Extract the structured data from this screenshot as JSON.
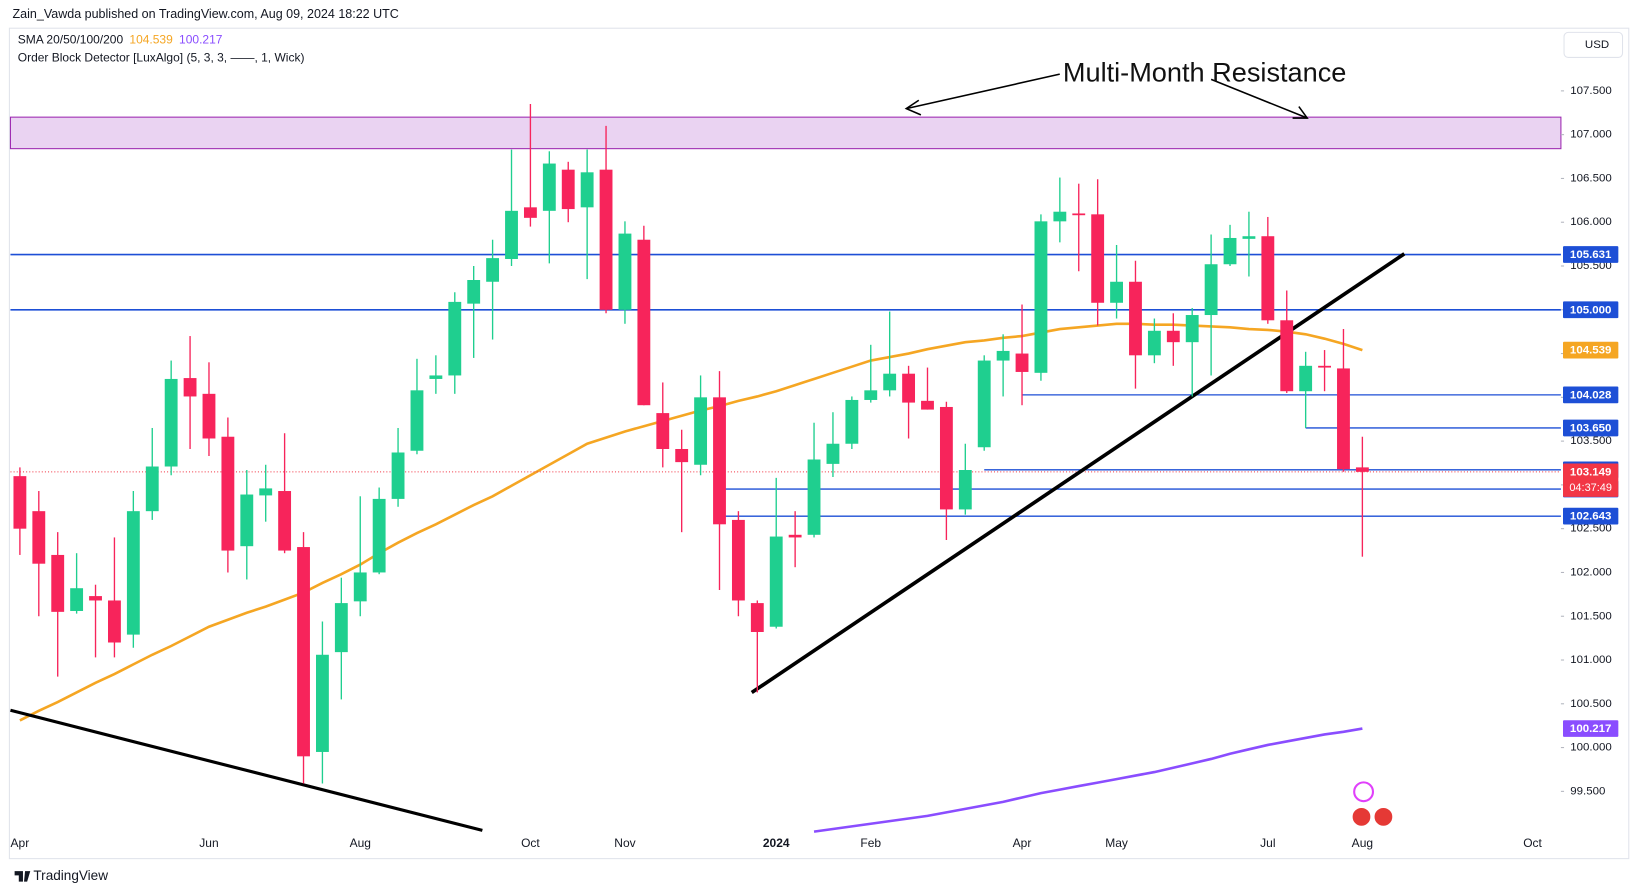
{
  "chart_data": {
    "type": "candlestick",
    "attribution": "Zain_Vawda published on TradingView.com, Aug 09, 2024 18:22 UTC",
    "indicator_sma": "SMA 20/50/100/200",
    "indicator_ob": "Order Block Detector [LuxAlgo] (5, 3, 3, ——, 1, Wick)",
    "currency": "USD",
    "annotation": "Multi-Month Resistance",
    "brand": "TradingView",
    "countdown": "04:37:49",
    "up_color": "#1fcf8f",
    "down_color": "#f7245b",
    "categories": [
      "Apr",
      null,
      null,
      null,
      null,
      null,
      null,
      null,
      null,
      null,
      "Jun",
      null,
      null,
      null,
      null,
      null,
      null,
      null,
      "Aug",
      null,
      null,
      null,
      null,
      null,
      null,
      null,
      null,
      "Oct",
      null,
      null,
      null,
      null,
      "Nov",
      null,
      null,
      null,
      null,
      null,
      null,
      null,
      "2024",
      null,
      null,
      null,
      null,
      "Feb",
      null,
      null,
      null,
      null,
      null,
      null,
      null,
      "Apr",
      null,
      null,
      null,
      null,
      "May",
      null,
      null,
      null,
      null,
      null,
      null,
      null,
      "Jul",
      null,
      null,
      null,
      null,
      "Aug",
      null,
      null,
      null,
      null,
      null,
      null,
      null,
      null,
      "Oct",
      null
    ],
    "open": [
      103.1,
      102.7,
      102.2,
      101.56,
      101.73,
      101.68,
      101.29,
      102.7,
      103.21,
      104.22,
      104.04,
      103.55,
      102.3,
      102.88,
      102.93,
      102.29,
      99.95,
      101.09,
      101.67,
      102.0,
      102.84,
      103.39,
      104.21,
      104.25,
      105.07,
      105.32,
      105.58,
      106.17,
      106.13,
      106.6,
      106.17,
      106.6,
      105.0,
      105.8,
      103.82,
      103.41,
      103.23,
      104.0,
      102.6,
      101.65,
      101.38,
      102.43,
      102.43,
      103.24,
      103.47,
      103.97,
      104.08,
      104.27,
      103.96,
      103.89,
      102.72,
      103.43,
      104.42,
      104.5,
      104.28,
      106.01,
      106.1,
      106.09,
      105.08,
      105.32,
      104.48,
      104.76,
      104.63,
      104.94,
      105.52,
      105.81,
      105.84,
      104.88,
      104.07,
      104.36,
      104.33,
      103.2,
      null,
      null,
      null,
      null,
      null,
      null,
      null,
      null,
      null,
      null
    ],
    "high": [
      103.2,
      102.93,
      102.46,
      102.22,
      101.86,
      102.4,
      102.93,
      103.65,
      104.42,
      104.7,
      104.4,
      103.77,
      103.17,
      103.23,
      103.59,
      102.46,
      101.44,
      101.94,
      102.87,
      102.97,
      103.65,
      104.44,
      104.48,
      105.2,
      105.5,
      105.8,
      106.83,
      107.35,
      106.81,
      106.69,
      106.83,
      107.1,
      106.01,
      105.96,
      104.17,
      103.63,
      104.25,
      104.3,
      102.7,
      101.68,
      103.08,
      102.7,
      103.71,
      103.83,
      104.01,
      104.6,
      104.98,
      104.36,
      104.34,
      103.95,
      103.47,
      104.48,
      104.72,
      105.06,
      106.09,
      106.51,
      106.44,
      106.49,
      105.74,
      105.56,
      104.9,
      104.96,
      105.02,
      105.86,
      105.97,
      106.12,
      106.06,
      105.22,
      104.52,
      104.54,
      104.78,
      103.55,
      null,
      null,
      null,
      null,
      null,
      null,
      null,
      null,
      null,
      null
    ],
    "low": [
      102.2,
      101.5,
      100.81,
      101.53,
      101.03,
      101.03,
      101.14,
      102.6,
      103.11,
      103.41,
      103.33,
      102.0,
      101.92,
      102.58,
      102.22,
      99.59,
      99.59,
      100.55,
      101.5,
      101.98,
      102.75,
      103.35,
      104.04,
      104.04,
      104.45,
      104.66,
      105.5,
      105.95,
      105.53,
      106.0,
      105.35,
      104.96,
      104.84,
      103.91,
      103.2,
      102.46,
      103.11,
      101.8,
      101.5,
      100.63,
      101.36,
      102.06,
      102.4,
      103.09,
      103.41,
      103.94,
      104.01,
      103.53,
      103.86,
      102.37,
      102.66,
      103.39,
      104.01,
      103.91,
      104.19,
      105.77,
      105.44,
      104.82,
      104.9,
      104.1,
      104.39,
      104.36,
      104.01,
      104.25,
      105.5,
      105.38,
      104.84,
      104.05,
      103.65,
      104.07,
      103.15,
      102.18,
      null,
      null,
      null,
      null,
      null,
      null,
      null,
      null,
      null,
      null
    ],
    "close": [
      102.5,
      102.1,
      101.55,
      101.82,
      101.68,
      101.2,
      102.7,
      103.21,
      104.21,
      104.01,
      103.53,
      102.25,
      102.89,
      102.96,
      102.25,
      99.9,
      101.06,
      101.65,
      102.0,
      102.84,
      103.37,
      104.08,
      104.25,
      105.09,
      105.34,
      105.59,
      106.13,
      106.05,
      106.67,
      106.15,
      106.57,
      105.0,
      105.87,
      103.91,
      103.41,
      103.26,
      104.0,
      102.55,
      101.68,
      101.32,
      102.41,
      102.4,
      103.29,
      103.47,
      103.97,
      104.08,
      104.27,
      103.94,
      103.86,
      102.72,
      103.17,
      104.42,
      104.53,
      104.29,
      106.01,
      106.12,
      106.08,
      105.08,
      105.32,
      104.48,
      104.76,
      104.63,
      104.94,
      105.52,
      105.82,
      105.84,
      104.88,
      104.07,
      104.36,
      104.34,
      103.18,
      103.149,
      null,
      null,
      null,
      null,
      null,
      null,
      null,
      null,
      null,
      null
    ],
    "series": [
      {
        "color": "#f5a623",
        "values": [
          100.31,
          100.42,
          100.52,
          100.63,
          100.74,
          100.84,
          100.95,
          101.06,
          101.16,
          101.27,
          101.38,
          101.46,
          101.54,
          101.61,
          101.69,
          101.77,
          101.88,
          101.98,
          102.09,
          102.22,
          102.34,
          102.45,
          102.55,
          102.66,
          102.77,
          102.87,
          102.99,
          103.11,
          103.23,
          103.35,
          103.47,
          103.54,
          103.61,
          103.67,
          103.73,
          103.79,
          103.85,
          103.9,
          103.96,
          104.01,
          104.07,
          104.14,
          104.21,
          104.28,
          104.35,
          104.42,
          104.46,
          104.5,
          104.55,
          104.59,
          104.63,
          104.65,
          104.68,
          104.7,
          104.74,
          104.78,
          104.8,
          104.82,
          104.84,
          104.84,
          104.83,
          104.83,
          104.82,
          104.81,
          104.8,
          104.78,
          104.77,
          104.75,
          104.72,
          104.67,
          104.61,
          104.539,
          null,
          null,
          null,
          null,
          null,
          null,
          null,
          null,
          null,
          null
        ]
      },
      {
        "color": "#8a4dff",
        "values": [
          null,
          null,
          null,
          null,
          null,
          null,
          null,
          null,
          null,
          null,
          null,
          null,
          null,
          null,
          null,
          null,
          null,
          null,
          null,
          null,
          null,
          null,
          null,
          null,
          null,
          null,
          null,
          null,
          null,
          null,
          null,
          null,
          null,
          null,
          null,
          null,
          null,
          null,
          null,
          null,
          null,
          null,
          99.04,
          99.07,
          99.1,
          99.13,
          99.16,
          99.19,
          99.22,
          99.26,
          99.3,
          99.34,
          99.38,
          99.43,
          99.48,
          99.52,
          99.56,
          99.6,
          99.64,
          99.68,
          99.72,
          99.77,
          99.82,
          99.87,
          99.93,
          99.98,
          100.03,
          100.07,
          100.11,
          100.15,
          100.18,
          100.217,
          null,
          null,
          null,
          null,
          null,
          null,
          null,
          null,
          null,
          null
        ]
      }
    ],
    "levels": [
      105.631,
      {
        "value": 105,
        "label": "105.000"
      },
      104.028,
      {
        "value": 103.65,
        "label": "103.650"
      },
      103.172,
      102.953,
      102.643
    ],
    "level_color": "#1d4fd6",
    "last_price_color": "#f23645",
    "resistance_zone": {
      "low": 106.84,
      "high": 107.2,
      "color": "#ead3f2"
    },
    "ylim": [
      99.03,
      108.18
    ],
    "yticks": [
      {
        "value": 99.5,
        "label": "99.500"
      },
      {
        "value": 100,
        "label": "100.000"
      },
      {
        "value": 100.5,
        "label": "100.500"
      },
      {
        "value": 101,
        "label": "101.000"
      },
      {
        "value": 101.5,
        "label": "101.500"
      },
      {
        "value": 102,
        "label": "102.000"
      },
      {
        "value": 102.5,
        "label": "102.500"
      },
      {
        "value": 103,
        "label": "103.000"
      },
      {
        "value": 103.5,
        "label": "103.500"
      },
      {
        "value": 104,
        "label": "104.000"
      },
      {
        "value": 104.5,
        "label": "104.500"
      },
      {
        "value": 105,
        "label": "105.000"
      },
      {
        "value": 105.5,
        "label": "105.500"
      },
      {
        "value": 106,
        "label": "106.000"
      },
      {
        "value": 106.5,
        "label": "106.500"
      },
      {
        "value": 107,
        "label": "107.000"
      },
      {
        "value": 107.5,
        "label": "107.500"
      }
    ],
    "grid": false
  }
}
